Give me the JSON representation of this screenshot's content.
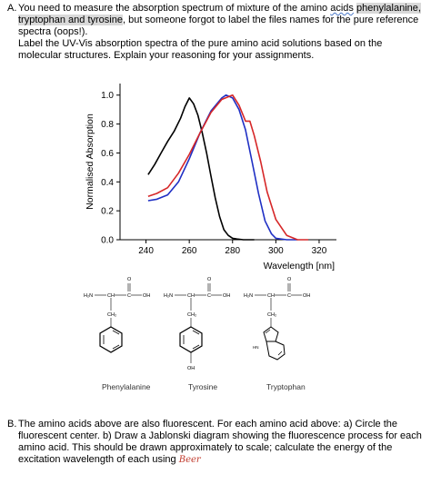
{
  "questionA": {
    "label": "A.",
    "line1_pre": "You need to measure the absorption spectrum of mixture of the amino ",
    "line1_underlined": "acids",
    "line1_space": " ",
    "line1_highlight": "phenylalanine,",
    "line2_highlight": "tryptophan and tyrosine",
    "line2_rest": ", but someone forgot to label the files names for the pure reference spectra (oops!).",
    "line3": "Label the UV-Vis absorption spectra of the pure amino acid solutions based on the molecular structures. Explain your reasoning for your assignments."
  },
  "chart_data": {
    "type": "line",
    "xlabel": "Wavelength [nm]",
    "ylabel": "Normalised Absorption",
    "xlim": [
      228,
      328
    ],
    "ylim": [
      0.0,
      1.08
    ],
    "xticks": [
      240,
      260,
      280,
      300,
      320
    ],
    "yticks": [
      0.0,
      0.2,
      0.4,
      0.6,
      0.8,
      1.0
    ],
    "ytick_labels": [
      "0.0",
      "0.2",
      "0.4",
      "0.6",
      "0.8",
      "1.0"
    ],
    "series": [
      {
        "color": "#000000",
        "x": [
          241,
          244,
          247,
          250,
          253,
          256,
          258,
          260,
          262,
          264,
          266,
          268,
          270,
          272,
          274,
          276,
          278,
          280,
          282,
          285,
          290
        ],
        "y": [
          0.45,
          0.52,
          0.6,
          0.68,
          0.75,
          0.84,
          0.92,
          0.98,
          0.94,
          0.86,
          0.74,
          0.6,
          0.44,
          0.29,
          0.16,
          0.07,
          0.03,
          0.01,
          0.005,
          0.0,
          0.0
        ]
      },
      {
        "color": "#1f2fc4",
        "x": [
          241,
          245,
          250,
          255,
          260,
          265,
          270,
          275,
          277,
          280,
          283,
          286,
          289,
          292,
          295,
          298,
          300,
          305,
          310
        ],
        "y": [
          0.27,
          0.28,
          0.31,
          0.4,
          0.56,
          0.74,
          0.89,
          0.98,
          1.0,
          0.98,
          0.9,
          0.76,
          0.54,
          0.32,
          0.13,
          0.04,
          0.01,
          0.0,
          0.0
        ]
      },
      {
        "color": "#d62728",
        "x": [
          241,
          245,
          250,
          255,
          260,
          265,
          270,
          275,
          280,
          283,
          286,
          288,
          290,
          293,
          296,
          300,
          305,
          310,
          315
        ],
        "y": [
          0.3,
          0.32,
          0.36,
          0.46,
          0.59,
          0.74,
          0.88,
          0.97,
          1.0,
          0.93,
          0.82,
          0.82,
          0.72,
          0.54,
          0.33,
          0.14,
          0.03,
          0.0,
          0.0
        ]
      }
    ]
  },
  "molecules": [
    {
      "name": "Phenylalanine",
      "amine": "H₂N",
      "ch": "CH",
      "carbon": "C",
      "hydroxyl": "OH",
      "oxygen": "O",
      "ch2": "CH₂",
      "extra": ""
    },
    {
      "name": "Tyrosine",
      "amine": "H₂N",
      "ch": "CH",
      "carbon": "C",
      "hydroxyl": "OH",
      "oxygen": "O",
      "ch2": "CH₂",
      "extra": "OH"
    },
    {
      "name": "Tryptophan",
      "amine": "H₂N",
      "ch": "CH",
      "carbon": "C",
      "hydroxyl": "OH",
      "oxygen": "O",
      "ch2": "CH₂",
      "extra": "HN"
    }
  ],
  "questionB": {
    "label": "B.",
    "text": "The amino acids above are also fluorescent. For each amino acid above: a) Circle the fluorescent center. b) Draw a Jablonski diagram showing the fluorescence process for each amino acid. This should be drawn approximately to scale; calculate the energy of the excitation wavelength of each using ",
    "handwritten": "Beer"
  }
}
